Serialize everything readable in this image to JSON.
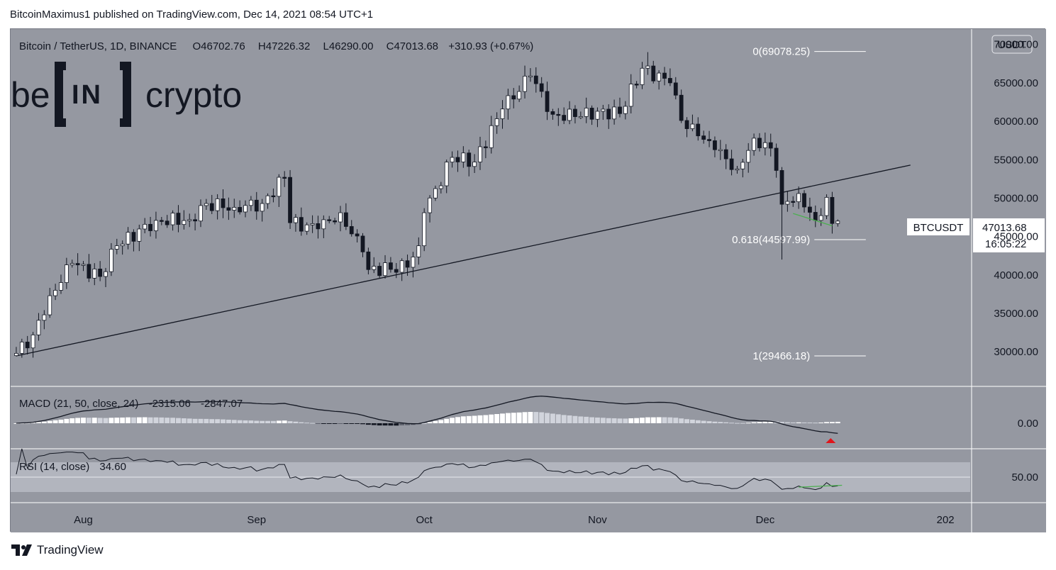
{
  "header": {
    "published_by": "BitcoinMaximus1 published on TradingView.com, Dec 14, 2021 08:54 UTC+1"
  },
  "footer": {
    "brand": "TradingView"
  },
  "symbol_line": {
    "name": "Bitcoin / TetherUS, 1D, BINANCE",
    "open_label": "O",
    "open": "46702.76",
    "high_label": "H",
    "high": "47226.32",
    "low_label": "L",
    "low": "46290.00",
    "close_label": "C",
    "close": "47013.68",
    "change": "+310.93 (+0.67%)"
  },
  "watermark": {
    "text_left": "be",
    "text_mid": "IN",
    "text_right": "crypto"
  },
  "currency": "USDT",
  "price_tag": {
    "symbol": "BTCUSDT",
    "price": "47013.68",
    "countdown": "16:05:22"
  },
  "macd_label": {
    "name": "MACD (21, 50, close, 24)",
    "v1": "-2315.06",
    "v2": "-2847.07"
  },
  "rsi_label": {
    "name": "RSI (14, close)",
    "value": "34.60"
  },
  "colors": {
    "background": "#9598a1",
    "up_candle": "#ffffff",
    "down_candle": "#131722",
    "divergence": "#4caf50",
    "signal_arrow": "#e0151b"
  },
  "chart_data": [
    {
      "type": "candlestick",
      "title": "Bitcoin / TetherUS, 1D, BINANCE",
      "y_range": [
        25500,
        72000
      ],
      "y_ticks": [
        "70000.00",
        "65000.00",
        "60000.00",
        "55000.00",
        "50000.00",
        "45000.00",
        "40000.00",
        "35000.00",
        "30000.00"
      ],
      "y_tick_values": [
        70000,
        65000,
        60000,
        55000,
        50000,
        45000,
        40000,
        35000,
        30000
      ],
      "x_start": "2021-07-20",
      "x_ticks": [
        "Aug",
        "Sep",
        "Oct",
        "Nov",
        "Dec",
        "202"
      ],
      "x_tick_dates": [
        "2021-08-01",
        "2021-09-01",
        "2021-10-01",
        "2021-11-01",
        "2021-12-01",
        "2022-01-01"
      ],
      "key_closes": [
        [
          "2021-07-20",
          29800
        ],
        [
          "2021-07-23",
          32200
        ],
        [
          "2021-07-26",
          37300
        ],
        [
          "2021-07-30",
          41500
        ],
        [
          "2021-08-04",
          39800
        ],
        [
          "2021-08-07",
          43800
        ],
        [
          "2021-08-14",
          47100
        ],
        [
          "2021-08-20",
          47200
        ],
        [
          "2021-08-23",
          49300
        ],
        [
          "2021-08-28",
          48800
        ],
        [
          "2021-09-02",
          49300
        ],
        [
          "2021-09-06",
          52700
        ],
        [
          "2021-09-07",
          46800
        ],
        [
          "2021-09-12",
          46000
        ],
        [
          "2021-09-16",
          48100
        ],
        [
          "2021-09-20",
          43000
        ],
        [
          "2021-09-21",
          40700
        ],
        [
          "2021-09-28",
          41000
        ],
        [
          "2021-09-30",
          43800
        ],
        [
          "2021-10-01",
          48100
        ],
        [
          "2021-10-06",
          55300
        ],
        [
          "2021-10-10",
          54700
        ],
        [
          "2021-10-15",
          61600
        ],
        [
          "2021-10-20",
          65900
        ],
        [
          "2021-10-24",
          60900
        ],
        [
          "2021-10-28",
          60600
        ],
        [
          "2021-11-01",
          61300
        ],
        [
          "2021-11-05",
          61000
        ],
        [
          "2021-11-09",
          66900
        ],
        [
          "2021-11-14",
          65000
        ],
        [
          "2021-11-16",
          60100
        ],
        [
          "2021-11-19",
          58100
        ],
        [
          "2021-11-22",
          56300
        ],
        [
          "2021-11-26",
          53800
        ],
        [
          "2021-11-29",
          57800
        ],
        [
          "2021-12-02",
          56500
        ],
        [
          "2021-12-03",
          53600
        ],
        [
          "2021-12-04",
          49200
        ],
        [
          "2021-12-07",
          50600
        ],
        [
          "2021-12-10",
          47100
        ],
        [
          "2021-12-12",
          50100
        ],
        [
          "2021-12-13",
          46700
        ],
        [
          "2021-12-14",
          47013.68
        ]
      ],
      "last_candle": {
        "date": "2021-12-14",
        "open": 46702.76,
        "high": 47226.32,
        "low": 46290.0,
        "close": 47013.68
      },
      "extremes": [
        {
          "date": "2021-11-10",
          "high": 69000
        },
        {
          "date": "2021-12-04",
          "low": 42000
        },
        {
          "date": "2021-07-20",
          "low": 29400
        }
      ],
      "trendline": {
        "from": [
          "2021-07-20",
          29466
        ],
        "to": [
          "2021-12-27",
          54300
        ]
      },
      "fib_levels": [
        {
          "label": "0(69078.25)",
          "value": 69078.25
        },
        {
          "label": "0.618(44597.99)",
          "value": 44597.99
        },
        {
          "label": "1(29466.18)",
          "value": 29466.18
        }
      ],
      "divergence_line": {
        "from": [
          "2021-12-06",
          48000
        ],
        "to": [
          "2021-12-13",
          46400
        ]
      }
    },
    {
      "type": "macd",
      "title": "MACD (21, 50, close, 24)",
      "values": {
        "macd": -2315.06,
        "signal": -2847.07
      },
      "y_ticks": [
        "0.00"
      ],
      "y_tick_values": [
        0
      ],
      "signal_arrow": "down"
    },
    {
      "type": "rsi",
      "title": "RSI (14, close)",
      "value": 34.6,
      "y_ticks": [
        "50.00"
      ],
      "y_tick_values": [
        50
      ],
      "band": [
        30,
        70
      ]
    }
  ]
}
